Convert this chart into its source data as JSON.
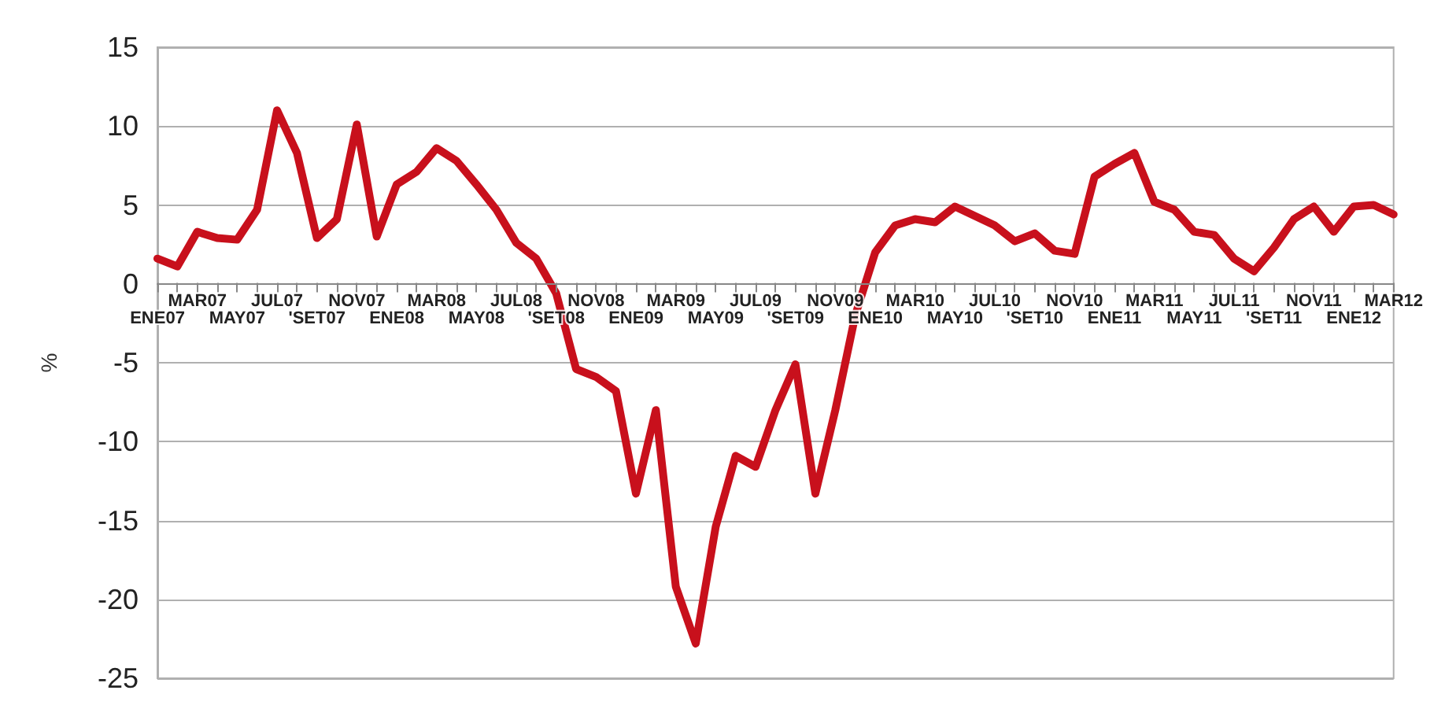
{
  "chart_data": {
    "type": "line",
    "ylabel": "%",
    "categories": [
      "ENE07",
      null,
      "MAR07",
      null,
      "MAY07",
      null,
      "JUL07",
      null,
      "'SET07",
      null,
      "NOV07",
      null,
      "ENE08",
      null,
      "MAR08",
      null,
      "MAY08",
      null,
      "JUL08",
      null,
      "'SET08",
      null,
      "NOV08",
      null,
      "ENE09",
      null,
      "MAR09",
      null,
      "MAY09",
      null,
      "JUL09",
      null,
      "'SET09",
      null,
      "NOV09",
      null,
      "ENE10",
      null,
      "MAR10",
      null,
      "MAY10",
      null,
      "JUL10",
      null,
      "'SET10",
      null,
      "NOV10",
      null,
      "ENE11",
      null,
      "MAR11",
      null,
      "MAY11",
      null,
      "JUL11",
      null,
      "'SET11",
      null,
      "NOV11",
      null,
      "ENE12",
      null,
      "MAR12"
    ],
    "series": [
      {
        "color": "#c8101c",
        "values": [
          1.6,
          1.1,
          3.3,
          2.9,
          2.8,
          4.7,
          11.0,
          8.3,
          2.9,
          4.1,
          10.1,
          3.0,
          6.3,
          7.1,
          8.6,
          7.8,
          6.3,
          4.7,
          2.6,
          1.6,
          -0.6,
          -5.4,
          -5.9,
          -6.8,
          -13.3,
          -8.0,
          -19.2,
          -22.8,
          -15.4,
          -10.9,
          -11.6,
          -8.0,
          -5.1,
          -13.3,
          -8.0,
          -2.0,
          2.0,
          3.7,
          4.1,
          3.9,
          4.9,
          4.3,
          3.7,
          2.7,
          3.2,
          2.1,
          1.9,
          6.8,
          7.6,
          8.3,
          5.2,
          4.7,
          3.3,
          3.1,
          1.6,
          0.8,
          2.3,
          4.1,
          4.9,
          3.3,
          4.9,
          5.0,
          4.4
        ]
      }
    ],
    "ylim": [
      -25,
      15
    ],
    "yticks": [
      -25,
      -20,
      -15,
      -10,
      -5,
      0,
      5,
      10,
      15
    ],
    "grid": "y",
    "marker": "none",
    "line_style": "solid"
  }
}
